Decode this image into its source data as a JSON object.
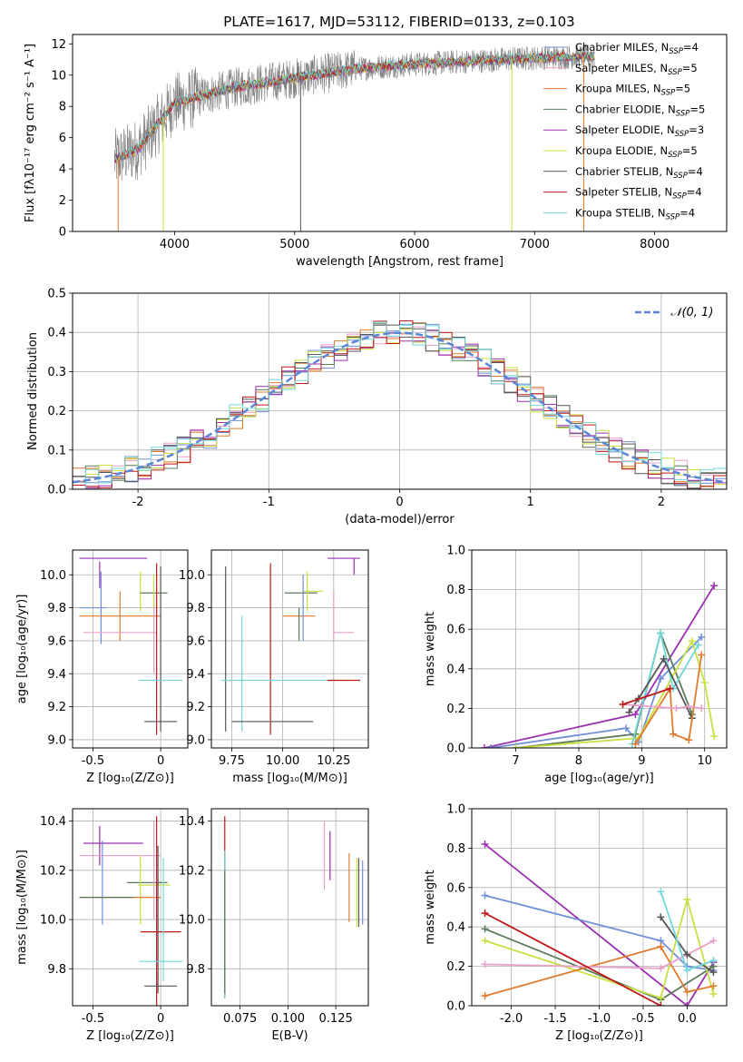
{
  "figure_title": "PLATE=1617, MJD=53112, FIBERID=0133, z=0.103",
  "colors": {
    "chabrier_miles": "#6f8fd8",
    "salpeter_miles": "#e8a0c8",
    "kroupa_miles": "#e07b2e",
    "chabrier_elodie": "#5b7b5b",
    "salpeter_elodie": "#9b30b0",
    "kroupa_elodie": "#c8e040",
    "chabrier_stelib": "#555555",
    "salpeter_stelib": "#c01818",
    "kroupa_stelib": "#6fd8d8",
    "gauss": "#5b86d8",
    "grid": "#b0b0b0"
  },
  "chart_data": [
    {
      "id": "spectrum",
      "type": "line",
      "title": "PLATE=1617, MJD=53112, FIBERID=0133, z=0.103",
      "xlabel": "wavelength [Angstrom, rest frame]",
      "ylabel": "Flux [fλ10⁻¹⁷ erg cm⁻² s⁻¹ A⁻¹]",
      "xlim": [
        3150,
        8600
      ],
      "ylim": [
        0,
        12.6
      ],
      "xticks": [
        4000,
        5000,
        6000,
        7000,
        8000
      ],
      "yticks": [
        0,
        2,
        4,
        6,
        8,
        10,
        12
      ],
      "grid": false,
      "legend": "top-right",
      "data_envelope": {
        "x": [
          3500,
          3700,
          4000,
          4500,
          5000,
          5500,
          6000,
          6500,
          7000,
          7500
        ],
        "y": [
          4.6,
          5.3,
          8.2,
          9.2,
          9.8,
          10.4,
          10.7,
          10.9,
          11.1,
          11.2
        ]
      },
      "legend_entries": [
        {
          "label": "Chabrier MILES, N",
          "sub": "SSP",
          "tail": "=4",
          "color_key": "chabrier_miles"
        },
        {
          "label": "Salpeter MILES, N",
          "sub": "SSP",
          "tail": "=5",
          "color_key": "salpeter_miles"
        },
        {
          "label": "Kroupa MILES, N",
          "sub": "SSP",
          "tail": "=5",
          "color_key": "kroupa_miles"
        },
        {
          "label": "Chabrier ELODIE, N",
          "sub": "SSP",
          "tail": "=5",
          "color_key": "chabrier_elodie"
        },
        {
          "label": "Salpeter ELODIE, N",
          "sub": "SSP",
          "tail": "=3",
          "color_key": "salpeter_elodie"
        },
        {
          "label": "Kroupa ELODIE, N",
          "sub": "SSP",
          "tail": "=5",
          "color_key": "kroupa_elodie"
        },
        {
          "label": "Chabrier STELIB, N",
          "sub": "SSP",
          "tail": "=4",
          "color_key": "chabrier_stelib"
        },
        {
          "label": "Salpeter STELIB, N",
          "sub": "SSP",
          "tail": "=4",
          "color_key": "salpeter_stelib"
        },
        {
          "label": "Kroupa STELIB, N",
          "sub": "SSP",
          "tail": "=4",
          "color_key": "kroupa_stelib"
        }
      ]
    },
    {
      "id": "residuals",
      "type": "line",
      "xlabel": "(data-model)/error",
      "ylabel": "Normed distribution",
      "xlim": [
        -2.5,
        2.5
      ],
      "ylim": [
        0,
        0.5
      ],
      "xticks": [
        -2,
        -1,
        0,
        1,
        2
      ],
      "yticks": [
        0.0,
        0.1,
        0.2,
        0.3,
        0.4,
        0.5
      ],
      "grid": true,
      "legend": "top-right",
      "gauss_label": "𝒩(0, 1)",
      "bin_width": 0.1
    },
    {
      "id": "age_vs_Z",
      "type": "scatter",
      "xlabel": "Z [log₁₀(Z/Z⊙)]",
      "ylabel": "age  [log₁₀(age/yr)]",
      "xlim": [
        -0.65,
        0.2
      ],
      "ylim": [
        8.95,
        10.15
      ],
      "xticks": [
        -0.5,
        0.0
      ],
      "yticks": [
        9.0,
        9.2,
        9.4,
        9.6,
        9.8,
        10.0
      ],
      "grid": true,
      "errorbars": [
        {
          "x": -0.35,
          "xerr": 0.25,
          "y": 10.1,
          "yerr": 0.0,
          "color_key": "salpeter_elodie"
        },
        {
          "x": -0.45,
          "xerr": 0.0,
          "y": 10.0,
          "yerr": 0.08,
          "color_key": "salpeter_elodie"
        },
        {
          "x": -0.44,
          "xerr": 0.0,
          "y": 9.8,
          "yerr": 0.22,
          "color_key": "chabrier_miles"
        },
        {
          "x": -0.5,
          "xerr": 0.1,
          "y": 9.8,
          "yerr": 0.0,
          "color_key": "chabrier_miles"
        },
        {
          "x": -0.3,
          "xerr": 0.3,
          "y": 9.75,
          "yerr": 0.0,
          "color_key": "kroupa_miles"
        },
        {
          "x": -0.3,
          "xerr": 0.0,
          "y": 9.75,
          "yerr": 0.15,
          "color_key": "kroupa_miles"
        },
        {
          "x": -0.3,
          "xerr": 0.27,
          "y": 9.65,
          "yerr": 0.0,
          "color_key": "salpeter_miles"
        },
        {
          "x": -0.05,
          "xerr": 0.0,
          "y": 9.65,
          "yerr": 0.25,
          "color_key": "salpeter_miles"
        },
        {
          "x": -0.15,
          "xerr": 0.0,
          "y": 9.9,
          "yerr": 0.12,
          "color_key": "kroupa_elodie"
        },
        {
          "x": -0.05,
          "xerr": 0.1,
          "y": 9.89,
          "yerr": 0.0,
          "color_key": "chabrier_elodie"
        },
        {
          "x": -0.05,
          "xerr": 0.0,
          "y": 9.9,
          "yerr": 0.1,
          "color_key": "kroupa_elodie"
        },
        {
          "x": -0.03,
          "xerr": 0.0,
          "y": 9.55,
          "yerr": 0.52,
          "color_key": "salpeter_stelib"
        },
        {
          "x": 0.0,
          "xerr": 0.0,
          "y": 9.55,
          "yerr": 0.5,
          "color_key": "chabrier_stelib"
        },
        {
          "x": 0.0,
          "xerr": 0.16,
          "y": 9.36,
          "yerr": 0.0,
          "color_key": "kroupa_stelib"
        },
        {
          "x": 0.0,
          "xerr": 0.12,
          "y": 9.11,
          "yerr": 0.0,
          "color_key": "chabrier_stelib"
        }
      ]
    },
    {
      "id": "age_vs_mass",
      "type": "scatter",
      "xlabel": "mass [log₁₀(M/M⊙)]",
      "ylabel": "",
      "xlim": [
        9.65,
        10.42
      ],
      "ylim": [
        8.95,
        10.15
      ],
      "xticks": [
        9.75,
        10.0,
        10.25
      ],
      "yticks": [
        9.0,
        9.2,
        9.4,
        9.6,
        9.8,
        10.0
      ],
      "xticklabels": [
        "9.75",
        "10.00",
        "10.25"
      ],
      "grid": true,
      "errorbars": [
        {
          "x": 10.3,
          "xerr": 0.08,
          "y": 10.1,
          "yerr": 0.0,
          "color_key": "salpeter_elodie"
        },
        {
          "x": 10.35,
          "xerr": 0.0,
          "y": 10.05,
          "yerr": 0.05,
          "color_key": "salpeter_elodie"
        },
        {
          "x": 9.72,
          "xerr": 0.0,
          "y": 9.55,
          "yerr": 0.5,
          "color_key": "chabrier_stelib"
        },
        {
          "x": 9.94,
          "xerr": 0.0,
          "y": 9.55,
          "yerr": 0.52,
          "color_key": "salpeter_stelib"
        },
        {
          "x": 9.8,
          "xerr": 0.0,
          "y": 9.4,
          "yerr": 0.35,
          "color_key": "kroupa_stelib"
        },
        {
          "x": 10.0,
          "xerr": 0.3,
          "y": 9.36,
          "yerr": 0.0,
          "color_key": "kroupa_stelib"
        },
        {
          "x": 10.3,
          "xerr": 0.08,
          "y": 9.36,
          "yerr": 0.0,
          "color_key": "salpeter_stelib"
        },
        {
          "x": 9.95,
          "xerr": 0.2,
          "y": 9.11,
          "yerr": 0.0,
          "color_key": "chabrier_stelib"
        },
        {
          "x": 10.09,
          "xerr": 0.08,
          "y": 9.89,
          "yerr": 0.0,
          "color_key": "chabrier_elodie"
        },
        {
          "x": 10.12,
          "xerr": 0.0,
          "y": 9.9,
          "yerr": 0.12,
          "color_key": "kroupa_elodie"
        },
        {
          "x": 10.15,
          "xerr": 0.05,
          "y": 9.9,
          "yerr": 0.0,
          "color_key": "kroupa_elodie"
        },
        {
          "x": 10.08,
          "xerr": 0.08,
          "y": 9.75,
          "yerr": 0.0,
          "color_key": "kroupa_miles"
        },
        {
          "x": 10.1,
          "xerr": 0.0,
          "y": 9.8,
          "yerr": 0.2,
          "color_key": "chabrier_miles"
        },
        {
          "x": 10.08,
          "xerr": 0.0,
          "y": 9.7,
          "yerr": 0.1,
          "color_key": "chabrier_elodie"
        },
        {
          "x": 10.25,
          "xerr": 0.0,
          "y": 9.75,
          "yerr": 0.15,
          "color_key": "salpeter_miles"
        },
        {
          "x": 10.3,
          "xerr": 0.05,
          "y": 9.65,
          "yerr": 0.0,
          "color_key": "salpeter_miles"
        }
      ]
    },
    {
      "id": "weight_vs_age",
      "type": "line",
      "xlabel": "age  [log₁₀(age/yr)]",
      "ylabel": "mass weight",
      "xlim": [
        6.3,
        10.35
      ],
      "ylim": [
        0,
        1.0
      ],
      "xticks": [
        7,
        8,
        9,
        10
      ],
      "yticks": [
        0.0,
        0.2,
        0.4,
        0.6,
        0.8,
        1.0
      ],
      "grid": true,
      "series": [
        {
          "color_key": "salpeter_elodie",
          "x": [
            6.5,
            8.9,
            10.15
          ],
          "y": [
            0.0,
            0.17,
            0.82
          ]
        },
        {
          "color_key": "chabrier_miles",
          "x": [
            6.6,
            8.75,
            8.95,
            9.3,
            9.95
          ],
          "y": [
            0.0,
            0.1,
            0.03,
            0.35,
            0.56
          ]
        },
        {
          "color_key": "chabrier_elodie",
          "x": [
            7.0,
            8.9,
            9.3,
            9.8
          ],
          "y": [
            0.0,
            0.07,
            0.58,
            0.17
          ]
        },
        {
          "color_key": "kroupa_elodie",
          "x": [
            7.0,
            8.95,
            9.8,
            10.0,
            10.15
          ],
          "y": [
            0.0,
            0.05,
            0.54,
            0.33,
            0.06
          ]
        },
        {
          "color_key": "kroupa_stelib",
          "x": [
            8.85,
            9.3,
            9.5,
            9.9
          ],
          "y": [
            0.02,
            0.58,
            0.3,
            0.52
          ]
        },
        {
          "color_key": "chabrier_stelib",
          "x": [
            8.8,
            8.95,
            9.35,
            9.8
          ],
          "y": [
            0.18,
            0.25,
            0.45,
            0.15
          ]
        },
        {
          "color_key": "kroupa_miles",
          "x": [
            8.9,
            9.45,
            9.5,
            9.75,
            9.95
          ],
          "y": [
            0.02,
            0.3,
            0.07,
            0.04,
            0.47
          ]
        },
        {
          "color_key": "salpeter_miles",
          "x": [
            8.7,
            9.55,
            9.75,
            9.95
          ],
          "y": [
            0.22,
            0.2,
            0.21,
            0.2
          ]
        },
        {
          "color_key": "salpeter_stelib",
          "x": [
            8.7,
            9.45
          ],
          "y": [
            0.22,
            0.3
          ]
        }
      ]
    },
    {
      "id": "mass_vs_Z",
      "type": "scatter",
      "xlabel": "Z [log₁₀(Z/Z⊙)]",
      "ylabel": "mass [log₁₀(M/M⊙)]",
      "xlim": [
        -0.65,
        0.2
      ],
      "ylim": [
        9.65,
        10.45
      ],
      "xticks": [
        -0.5,
        0.0
      ],
      "yticks": [
        9.8,
        10.0,
        10.2,
        10.4
      ],
      "grid": true,
      "errorbars": [
        {
          "x": -0.35,
          "xerr": 0.22,
          "y": 10.31,
          "yerr": 0.0,
          "color_key": "salpeter_elodie"
        },
        {
          "x": -0.45,
          "xerr": 0.0,
          "y": 10.3,
          "yerr": 0.08,
          "color_key": "salpeter_elodie"
        },
        {
          "x": -0.3,
          "xerr": 0.3,
          "y": 10.26,
          "yerr": 0.0,
          "color_key": "salpeter_miles"
        },
        {
          "x": -0.43,
          "xerr": 0.0,
          "y": 10.15,
          "yerr": 0.17,
          "color_key": "chabrier_miles"
        },
        {
          "x": -0.1,
          "xerr": 0.15,
          "y": 10.15,
          "yerr": 0.0,
          "color_key": "chabrier_elodie"
        },
        {
          "x": -0.05,
          "xerr": 0.12,
          "y": 10.14,
          "yerr": 0.0,
          "color_key": "kroupa_elodie"
        },
        {
          "x": -0.15,
          "xerr": 0.0,
          "y": 10.12,
          "yerr": 0.14,
          "color_key": "kroupa_elodie"
        },
        {
          "x": -0.3,
          "xerr": 0.3,
          "y": 10.09,
          "yerr": 0.0,
          "color_key": "kroupa_miles"
        },
        {
          "x": -0.4,
          "xerr": 0.2,
          "y": 10.09,
          "yerr": 0.0,
          "color_key": "chabrier_elodie"
        },
        {
          "x": 0.0,
          "xerr": 0.15,
          "y": 9.95,
          "yerr": 0.0,
          "color_key": "salpeter_stelib"
        },
        {
          "x": -0.05,
          "xerr": 0.0,
          "y": 10.2,
          "yerr": 0.2,
          "color_key": "salpeter_miles"
        },
        {
          "x": -0.03,
          "xerr": 0.0,
          "y": 10.0,
          "yerr": 0.42,
          "color_key": "salpeter_stelib"
        },
        {
          "x": -0.02,
          "xerr": 0.0,
          "y": 10.0,
          "yerr": 0.3,
          "color_key": "chabrier_stelib"
        },
        {
          "x": 0.0,
          "xerr": 0.16,
          "y": 9.83,
          "yerr": 0.0,
          "color_key": "kroupa_stelib"
        },
        {
          "x": 0.0,
          "xerr": 0.12,
          "y": 9.73,
          "yerr": 0.0,
          "color_key": "chabrier_stelib"
        },
        {
          "x": 0.02,
          "xerr": 0.0,
          "y": 10.0,
          "yerr": 0.25,
          "color_key": "kroupa_stelib"
        }
      ]
    },
    {
      "id": "mass_vs_ebv",
      "type": "scatter",
      "xlabel": "E(B-V)",
      "ylabel": "",
      "xlim": [
        0.06,
        0.142
      ],
      "ylim": [
        9.65,
        10.45
      ],
      "xticks": [
        0.075,
        0.1,
        0.125
      ],
      "yticks": [
        9.8,
        10.0,
        10.2,
        10.4
      ],
      "xticklabels": [
        "0.075",
        "0.100",
        "0.125"
      ],
      "grid": true,
      "errorbars": [
        {
          "x": 0.067,
          "xerr": 0.0,
          "y": 10.05,
          "yerr": 0.37,
          "color_key": "salpeter_stelib"
        },
        {
          "x": 0.067,
          "xerr": 0.0,
          "y": 9.98,
          "yerr": 0.3,
          "color_key": "kroupa_stelib"
        },
        {
          "x": 0.067,
          "xerr": 0.0,
          "y": 9.95,
          "yerr": 0.25,
          "color_key": "chabrier_elodie"
        },
        {
          "x": 0.119,
          "xerr": 0.0,
          "y": 10.26,
          "yerr": 0.14,
          "color_key": "salpeter_miles"
        },
        {
          "x": 0.122,
          "xerr": 0.0,
          "y": 10.26,
          "yerr": 0.1,
          "color_key": "salpeter_elodie"
        },
        {
          "x": 0.132,
          "xerr": 0.0,
          "y": 10.13,
          "yerr": 0.14,
          "color_key": "kroupa_miles"
        },
        {
          "x": 0.136,
          "xerr": 0.0,
          "y": 10.11,
          "yerr": 0.14,
          "color_key": "kroupa_elodie"
        },
        {
          "x": 0.137,
          "xerr": 0.0,
          "y": 10.11,
          "yerr": 0.14,
          "color_key": "chabrier_stelib"
        },
        {
          "x": 0.139,
          "xerr": 0.0,
          "y": 10.11,
          "yerr": 0.13,
          "color_key": "chabrier_miles"
        }
      ]
    },
    {
      "id": "weight_vs_Z",
      "type": "line",
      "xlabel": "Z [log₁₀(Z/Z⊙)]",
      "ylabel": "mass weight",
      "xlim": [
        -2.45,
        0.45
      ],
      "ylim": [
        0,
        1.0
      ],
      "xticks": [
        -2.0,
        -1.5,
        -1.0,
        -0.5,
        0.0
      ],
      "yticks": [
        0.0,
        0.2,
        0.4,
        0.6,
        0.8,
        1.0
      ],
      "grid": true,
      "series": [
        {
          "color_key": "salpeter_elodie",
          "x": [
            -2.3,
            0.0,
            0.3
          ],
          "y": [
            0.82,
            0.0,
            0.22
          ]
        },
        {
          "color_key": "chabrier_miles",
          "x": [
            -2.3,
            -0.3,
            0.0,
            0.3
          ],
          "y": [
            0.56,
            0.33,
            0.2,
            0.18
          ]
        },
        {
          "color_key": "chabrier_elodie",
          "x": [
            -2.3,
            -0.3,
            0.3
          ],
          "y": [
            0.39,
            0.03,
            0.2
          ]
        },
        {
          "color_key": "kroupa_elodie",
          "x": [
            -2.3,
            -0.3,
            0.0,
            0.3
          ],
          "y": [
            0.33,
            0.04,
            0.54,
            0.06
          ]
        },
        {
          "color_key": "kroupa_miles",
          "x": [
            -2.3,
            -0.3,
            0.0,
            0.3
          ],
          "y": [
            0.05,
            0.3,
            0.07,
            0.1
          ]
        },
        {
          "color_key": "salpeter_miles",
          "x": [
            -2.3,
            -0.3,
            0.3
          ],
          "y": [
            0.21,
            0.19,
            0.33
          ]
        },
        {
          "color_key": "chabrier_stelib",
          "x": [
            -0.3,
            0.0,
            0.3
          ],
          "y": [
            0.45,
            0.26,
            0.17
          ]
        },
        {
          "color_key": "kroupa_stelib",
          "x": [
            -0.3,
            0.0,
            0.3
          ],
          "y": [
            0.58,
            0.18,
            0.23
          ]
        },
        {
          "color_key": "salpeter_stelib",
          "x": [
            -2.3,
            -0.3
          ],
          "y": [
            0.47,
            0.0
          ]
        }
      ]
    }
  ]
}
